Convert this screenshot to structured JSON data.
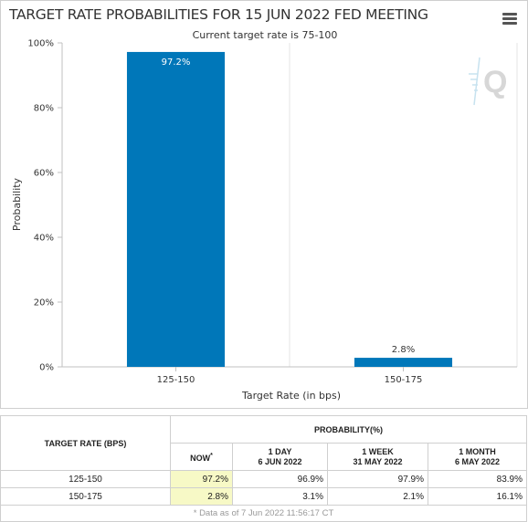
{
  "chart_data": {
    "type": "bar",
    "title": "TARGET RATE PROBABILITIES FOR 15 JUN 2022 FED MEETING",
    "subtitle": "Current target rate is 75-100",
    "categories": [
      "125-150",
      "150-175"
    ],
    "values": [
      97.2,
      2.8
    ],
    "data_labels": [
      "97.2%",
      "2.8%"
    ],
    "xlabel": "Target Rate (in bps)",
    "ylabel": "Probability",
    "ylim": [
      0,
      100
    ],
    "yticks": [
      0,
      20,
      40,
      60,
      80,
      100
    ],
    "ytick_labels": [
      "0%",
      "20%",
      "40%",
      "60%",
      "80%",
      "100%"
    ],
    "grid": "vertical",
    "bar_color": "#0077b9",
    "legend": "none"
  },
  "watermark": {
    "letter": "Q"
  },
  "table": {
    "header_rate": "TARGET RATE (BPS)",
    "header_probability": "PROBABILITY(%)",
    "columns": [
      {
        "line1": "NOW",
        "line2": "",
        "marker": "*"
      },
      {
        "line1": "1 DAY",
        "line2": "6 JUN 2022"
      },
      {
        "line1": "1 WEEK",
        "line2": "31 MAY 2022"
      },
      {
        "line1": "1 MONTH",
        "line2": "6 MAY 2022"
      }
    ],
    "rows": [
      {
        "rate": "125-150",
        "now": "97.2%",
        "day": "96.9%",
        "week": "97.9%",
        "month": "83.9%"
      },
      {
        "rate": "150-175",
        "now": "2.8%",
        "day": "3.1%",
        "week": "2.1%",
        "month": "16.1%"
      }
    ],
    "footnote": "* Data as of 7 Jun 2022 11:56:17 CT"
  }
}
